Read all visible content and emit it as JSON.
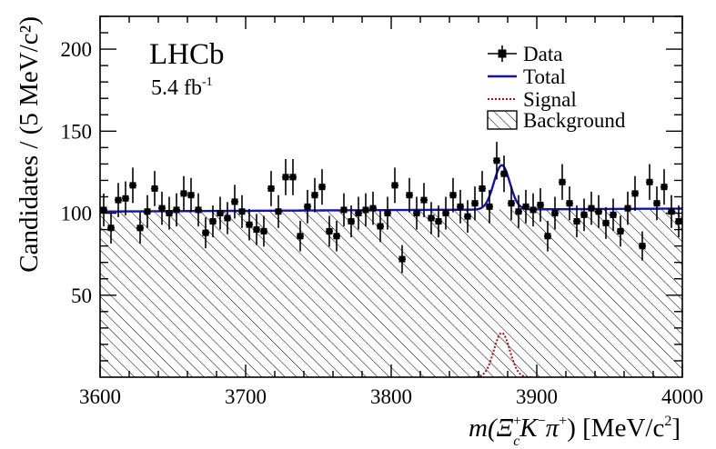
{
  "chart_data": {
    "type": "scatter",
    "experiment": "LHCb",
    "luminosity_value": "5.4 fb",
    "luminosity_exponent": "-1",
    "ylabel": "Candidates / (5 MeV/c²)",
    "xlabel_main": "m(Ξ",
    "xlabel_xi_sup": "+",
    "xlabel_xi_sub": "c",
    "xlabel_rest1": "K",
    "xlabel_kminus": "−",
    "xlabel_pi": "π",
    "xlabel_piplus": "+",
    "xlabel_units": ") [MeV/c",
    "xlabel_units_exp": "2",
    "xlabel_close": "]",
    "xlim": [
      3600,
      4000
    ],
    "ylim": [
      0,
      220
    ],
    "x_ticks": [
      3600,
      3700,
      3800,
      3900,
      4000
    ],
    "y_ticks": [
      50,
      100,
      150,
      200
    ],
    "legend": {
      "placement": "top-right",
      "entries": [
        {
          "key": "data",
          "label": "Data"
        },
        {
          "key": "total",
          "label": "Total"
        },
        {
          "key": "signal",
          "label": "Signal"
        },
        {
          "key": "background",
          "label": "Background"
        }
      ]
    },
    "colors": {
      "data": "#000000",
      "total": "#1010c0",
      "signal": "#cc0000",
      "background": "#000000",
      "axis": "#000000"
    },
    "background_level": 101,
    "background_slope": 0.0045,
    "signal_peak_x": 3876,
    "signal_peak_height": 27,
    "signal_sigma": 5.5,
    "signal_window": [
      3856,
      3896
    ],
    "data": {
      "x": [
        3602.5,
        3607.5,
        3612.5,
        3617.5,
        3622.5,
        3627.5,
        3632.5,
        3637.5,
        3642.5,
        3647.5,
        3652.5,
        3657.5,
        3662.5,
        3667.5,
        3672.5,
        3677.5,
        3682.5,
        3687.5,
        3692.5,
        3697.5,
        3702.5,
        3707.5,
        3712.5,
        3717.5,
        3722.5,
        3727.5,
        3732.5,
        3737.5,
        3742.5,
        3747.5,
        3752.5,
        3757.5,
        3762.5,
        3767.5,
        3772.5,
        3777.5,
        3782.5,
        3787.5,
        3792.5,
        3797.5,
        3802.5,
        3807.5,
        3812.5,
        3817.5,
        3822.5,
        3827.5,
        3832.5,
        3837.5,
        3842.5,
        3847.5,
        3852.5,
        3857.5,
        3862.5,
        3867.5,
        3872.5,
        3877.5,
        3882.5,
        3887.5,
        3892.5,
        3897.5,
        3902.5,
        3907.5,
        3912.5,
        3917.5,
        3922.5,
        3927.5,
        3932.5,
        3937.5,
        3942.5,
        3947.5,
        3952.5,
        3957.5,
        3962.5,
        3967.5,
        3972.5,
        3977.5,
        3982.5,
        3987.5,
        3992.5,
        3997.5
      ],
      "y": [
        102,
        91,
        108,
        109,
        117,
        91,
        101,
        115,
        103,
        100,
        102,
        112,
        111,
        102,
        88,
        95,
        100,
        97,
        107,
        101,
        93,
        90,
        89,
        115,
        101,
        122,
        122,
        86,
        104,
        111,
        116,
        89,
        86,
        102,
        95,
        100,
        102,
        103,
        92,
        100,
        117,
        72,
        111,
        100,
        108,
        97,
        95,
        100,
        111,
        104,
        98,
        106,
        115,
        104,
        132,
        124,
        106,
        101,
        104,
        102,
        105,
        86,
        100,
        119,
        106,
        95,
        99,
        103,
        101,
        94,
        99,
        89,
        103,
        112,
        80,
        119,
        106,
        116,
        101,
        95
      ],
      "err": [
        10,
        9.5,
        10.4,
        10.4,
        10.8,
        9.5,
        10,
        10.7,
        10.1,
        10,
        10.1,
        10.6,
        10.5,
        10.1,
        9.4,
        9.7,
        10,
        9.8,
        10.3,
        10,
        9.6,
        9.5,
        9.4,
        10.7,
        10,
        11,
        11,
        9.3,
        10.2,
        10.5,
        10.8,
        9.4,
        9.3,
        10.1,
        9.7,
        10,
        10.1,
        10.1,
        9.6,
        10,
        10.8,
        8.5,
        10.5,
        10,
        10.4,
        9.8,
        9.7,
        10,
        10.5,
        10.2,
        9.9,
        10.3,
        10.7,
        10.2,
        11.5,
        11.1,
        10.3,
        10,
        10.2,
        10.1,
        10.2,
        9.3,
        10,
        10.9,
        10.3,
        9.7,
        9.9,
        10.1,
        10,
        9.7,
        9.9,
        9.4,
        10.1,
        10.6,
        8.9,
        10.9,
        10.3,
        10.8,
        10,
        9.7
      ]
    }
  }
}
